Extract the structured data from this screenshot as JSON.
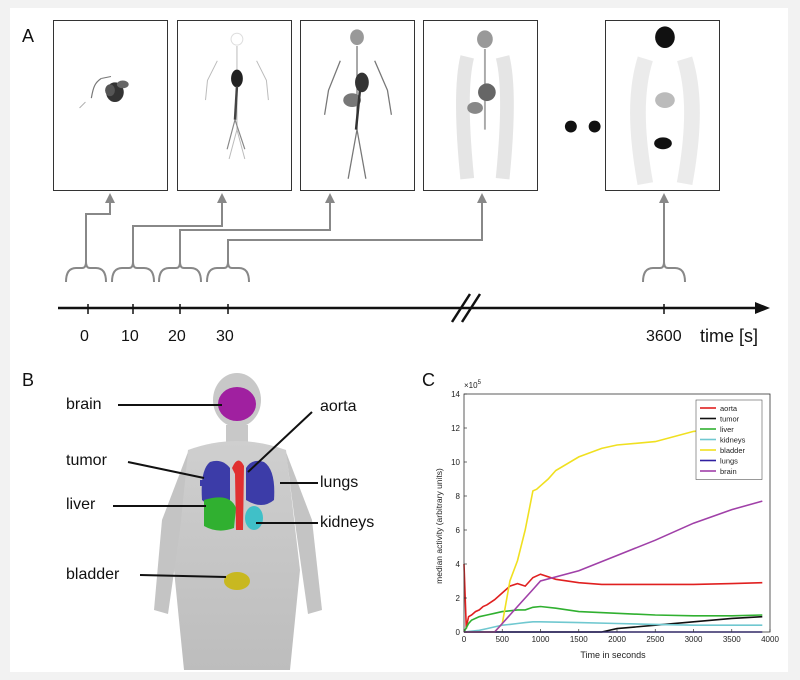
{
  "panels": {
    "a": "A",
    "b": "B",
    "c": "C"
  },
  "timeline": {
    "ticks": [
      "0",
      "10",
      "20",
      "30",
      "3600"
    ],
    "axis_label": "time [s]",
    "ellipsis": "•••"
  },
  "anatomy": {
    "labels": {
      "brain": "brain",
      "aorta": "aorta",
      "tumor": "tumor",
      "lungs": "lungs",
      "liver": "liver",
      "kidneys": "kidneys",
      "bladder": "bladder"
    },
    "colors": {
      "brain": "#a020a0",
      "aorta": "#e03030",
      "lungs": "#3c3ca8",
      "tumor": "#3c3ca8",
      "liver": "#30b030",
      "kidneys": "#40c0c8",
      "bladder": "#c8b820"
    }
  },
  "chart_data": {
    "type": "line",
    "title": "",
    "xlabel": "Time in seconds",
    "ylabel": "median activity (arbitrary units)",
    "y_multiplier": "× 10^5",
    "xlim": [
      0,
      4000
    ],
    "ylim": [
      0,
      14
    ],
    "xticks": [
      0,
      500,
      1000,
      1500,
      2000,
      2500,
      3000,
      3500,
      4000
    ],
    "yticks": [
      0,
      2,
      4,
      6,
      8,
      10,
      12,
      14
    ],
    "legend_position": "top-right",
    "series": [
      {
        "name": "aorta",
        "color": "#e02020",
        "x": [
          0,
          30,
          40,
          60,
          100,
          150,
          200,
          250,
          300,
          400,
          500,
          600,
          700,
          800,
          900,
          1000,
          1200,
          1500,
          1800,
          2000,
          2500,
          3000,
          3500,
          3900
        ],
        "y": [
          4.0,
          0.2,
          0.5,
          0.9,
          1.0,
          1.2,
          1.3,
          1.5,
          1.6,
          1.9,
          2.3,
          2.7,
          2.85,
          2.7,
          3.2,
          3.4,
          3.1,
          2.9,
          2.8,
          2.8,
          2.8,
          2.8,
          2.85,
          2.9
        ]
      },
      {
        "name": "tumor",
        "color": "#111111",
        "x": [
          0,
          500,
          1000,
          1500,
          1800,
          2000,
          2500,
          3000,
          3500,
          3900
        ],
        "y": [
          0,
          0.0,
          0.0,
          0.0,
          0.0,
          0.2,
          0.4,
          0.6,
          0.8,
          0.9
        ]
      },
      {
        "name": "liver",
        "color": "#30b030",
        "x": [
          0,
          60,
          100,
          200,
          300,
          400,
          500,
          600,
          700,
          800,
          900,
          1000,
          1200,
          1500,
          2000,
          2500,
          3000,
          3500,
          3900
        ],
        "y": [
          0,
          0.5,
          0.7,
          0.9,
          1.0,
          1.1,
          1.2,
          1.25,
          1.3,
          1.3,
          1.45,
          1.5,
          1.4,
          1.2,
          1.1,
          1.0,
          0.95,
          0.95,
          1.0
        ]
      },
      {
        "name": "kidneys",
        "color": "#70c8d0",
        "x": [
          0,
          200,
          300,
          400,
          500,
          600,
          700,
          800,
          900,
          1000,
          1500,
          2000,
          2500,
          3000,
          3500,
          3900
        ],
        "y": [
          0,
          0.1,
          0.2,
          0.3,
          0.4,
          0.45,
          0.5,
          0.55,
          0.6,
          0.6,
          0.55,
          0.5,
          0.45,
          0.4,
          0.4,
          0.4
        ]
      },
      {
        "name": "bladder",
        "color": "#f0e020",
        "x": [
          0,
          400,
          500,
          600,
          700,
          800,
          900,
          950,
          1000,
          1100,
          1200,
          1500,
          1800,
          2000,
          2500,
          3000,
          3200
        ],
        "y": [
          0,
          0.0,
          0.5,
          3.0,
          4.2,
          6.0,
          8.3,
          8.4,
          8.6,
          9.0,
          9.5,
          10.3,
          10.8,
          11.0,
          11.2,
          11.8,
          11.9
        ]
      },
      {
        "name": "lungs",
        "color": "#3020a0",
        "x": [
          0,
          100,
          200,
          500,
          1000,
          2000,
          3000,
          3900
        ],
        "y": [
          0,
          0.0,
          0.0,
          0.0,
          0.0,
          0.0,
          0.0,
          0.0
        ]
      },
      {
        "name": "brain",
        "color": "#a040a8",
        "x": [
          0,
          400,
          500,
          600,
          700,
          800,
          900,
          1000,
          1500,
          2000,
          2500,
          3000,
          3500,
          3900
        ],
        "y": [
          0,
          0.0,
          0.5,
          1.0,
          1.5,
          2.0,
          2.5,
          3.0,
          3.6,
          4.5,
          5.4,
          6.4,
          7.2,
          7.7
        ]
      }
    ]
  }
}
